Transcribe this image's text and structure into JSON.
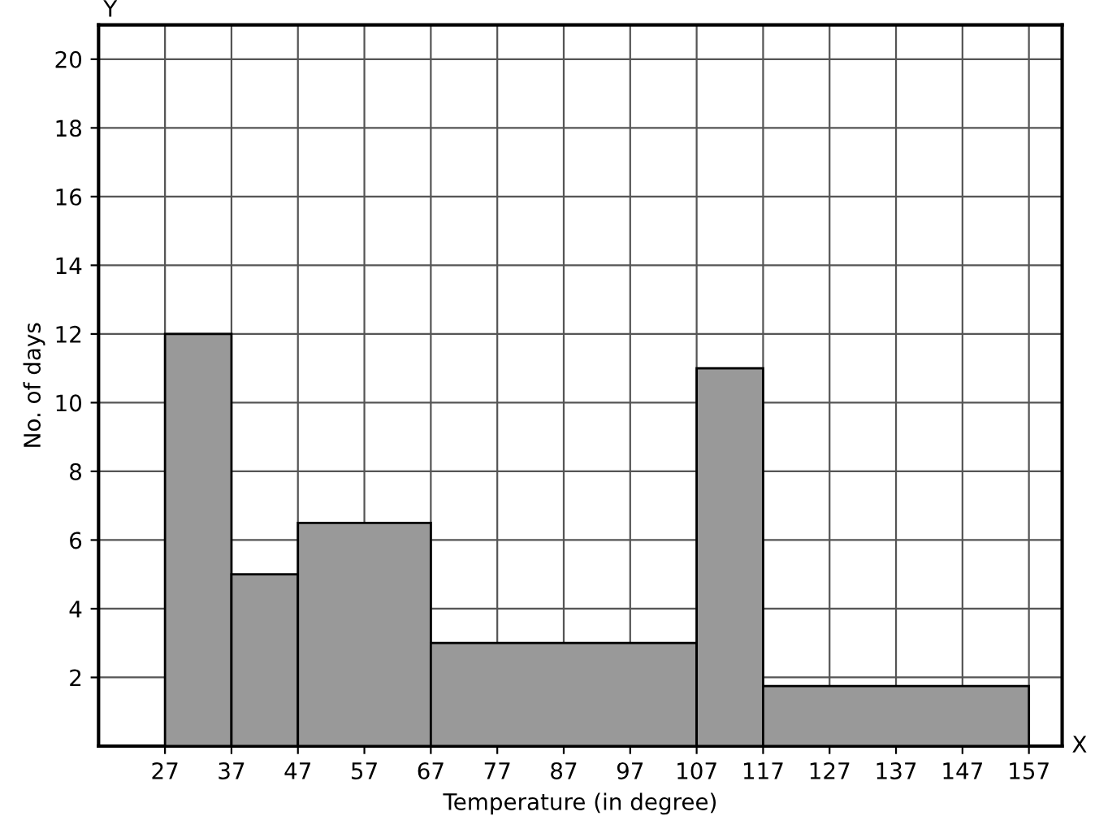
{
  "chart_data": {
    "type": "histogram",
    "xlabel": "Temperature (in degree)",
    "ylabel": "No. of days",
    "bins": [
      27,
      37,
      47,
      67,
      107,
      117,
      157
    ],
    "values": [
      12,
      5,
      6.5,
      3,
      11,
      1.75
    ],
    "color": "#999999",
    "xlim": [
      17,
      162
    ],
    "ylim": [
      0,
      21
    ],
    "xticks": [
      27,
      37,
      47,
      57,
      67,
      77,
      87,
      97,
      107,
      117,
      127,
      137,
      147,
      157
    ],
    "yticks": [
      2,
      4,
      6,
      8,
      10,
      12,
      14,
      16,
      18,
      20
    ],
    "grid": true,
    "annotations": [
      "Y",
      "X"
    ]
  }
}
